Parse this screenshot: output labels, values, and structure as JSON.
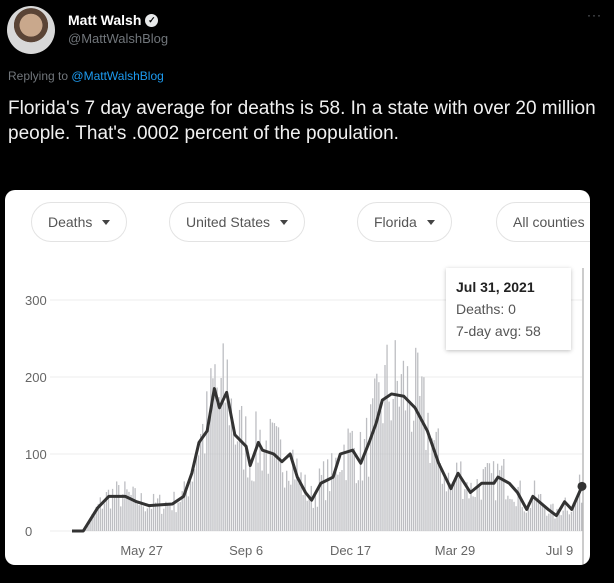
{
  "tweet": {
    "author_name": "Matt Walsh",
    "handle": "@MattWalshBlog",
    "more_icon": "···",
    "replying_label": "Replying to",
    "replying_handle": "@MattWalshBlog",
    "text": "Florida's 7 day average for deaths is 58. In a state with over 20 million people. That's .0002 percent of the population."
  },
  "filters": [
    {
      "label": "Deaths"
    },
    {
      "label": "United States"
    },
    {
      "label": "Florida"
    },
    {
      "label": "All counties"
    }
  ],
  "tooltip": {
    "date": "Jul 31, 2021",
    "deaths": "Deaths: 0",
    "avg": "7-day avg: 58"
  },
  "chart_data": {
    "type": "bar",
    "title": "",
    "xlabel": "",
    "ylabel": "Deaths",
    "ylim": [
      0,
      320
    ],
    "yticks": [
      "0",
      "100",
      "200",
      "300"
    ],
    "xlim_days": [
      0,
      498
    ],
    "xticks": [
      {
        "day": 68,
        "label": "May 27"
      },
      {
        "day": 170,
        "label": "Sep 6"
      },
      {
        "day": 272,
        "label": "Dec 17"
      },
      {
        "day": 374,
        "label": "Mar 29"
      },
      {
        "day": 476,
        "label": "Jul 9"
      }
    ],
    "grid": true,
    "series": [
      {
        "name": "7-day avg",
        "type": "line",
        "color": "#333333",
        "x": [
          0,
          11,
          25,
          36,
          52,
          63,
          75,
          98,
          109,
          117,
          124,
          132,
          139,
          144,
          151,
          159,
          170,
          174,
          182,
          186,
          197,
          205,
          213,
          220,
          228,
          234,
          243,
          255,
          262,
          274,
          282,
          291,
          297,
          303,
          312,
          324,
          335,
          347,
          358,
          370,
          377,
          389,
          400,
          412,
          416,
          427,
          435,
          444,
          450,
          465,
          473,
          481,
          488,
          498
        ],
        "values": [
          0,
          0,
          30,
          45,
          45,
          38,
          33,
          35,
          45,
          75,
          115,
          130,
          185,
          160,
          180,
          125,
          110,
          85,
          115,
          105,
          100,
          90,
          100,
          70,
          50,
          40,
          62,
          70,
          100,
          105,
          88,
          118,
          140,
          170,
          178,
          175,
          160,
          130,
          88,
          55,
          75,
          50,
          62,
          62,
          70,
          62,
          50,
          28,
          45,
          28,
          20,
          38,
          28,
          58
        ]
      },
      {
        "name": "Deaths (daily)",
        "type": "bar",
        "color": "#bdbec2"
      }
    ]
  },
  "colors": {
    "background": "#000000",
    "link": "#1d9bf0",
    "bar": "#bdbec2",
    "line": "#333333"
  }
}
